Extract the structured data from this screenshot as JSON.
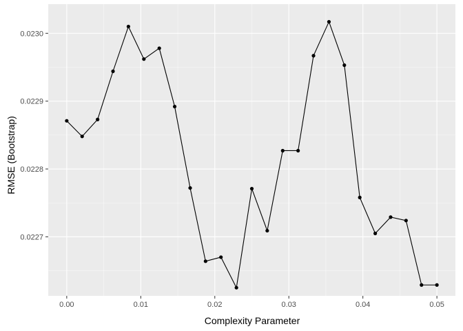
{
  "chart_data": {
    "type": "line",
    "xlabel": "Complexity Parameter",
    "ylabel": "RMSE (Bootstrap)",
    "xlim": [
      -0.0025,
      0.0525
    ],
    "ylim": [
      0.022613,
      0.023043
    ],
    "x_ticks": [
      0.0,
      0.01,
      0.02,
      0.03,
      0.04,
      0.05
    ],
    "x_tick_labels": [
      "0.00",
      "0.01",
      "0.02",
      "0.03",
      "0.04",
      "0.05"
    ],
    "y_ticks": [
      0.0227,
      0.0228,
      0.0229,
      0.023
    ],
    "y_tick_labels": [
      "0.0227",
      "0.0228",
      "0.0229",
      "0.0230"
    ],
    "grid": true,
    "legend": "none",
    "colors": {
      "panel_background": "#ebebeb",
      "grid_major": "#ffffff",
      "line": "#000000",
      "point": "#000000"
    },
    "series": [
      {
        "x": [
          0.0,
          0.00208,
          0.00417,
          0.00625,
          0.00833,
          0.01042,
          0.0125,
          0.01458,
          0.01667,
          0.01875,
          0.02083,
          0.02292,
          0.025,
          0.02708,
          0.02917,
          0.03125,
          0.03333,
          0.03542,
          0.0375,
          0.03958,
          0.04167,
          0.04375,
          0.04583,
          0.04792,
          0.05
        ],
        "values": [
          0.022871,
          0.022848,
          0.022873,
          0.022944,
          0.02301,
          0.022962,
          0.022978,
          0.022892,
          0.022772,
          0.022664,
          0.02267,
          0.022625,
          0.022771,
          0.022709,
          0.022827,
          0.022827,
          0.022967,
          0.023017,
          0.022953,
          0.022758,
          0.022705,
          0.022729,
          0.022724,
          0.022629,
          0.022629
        ]
      }
    ]
  }
}
